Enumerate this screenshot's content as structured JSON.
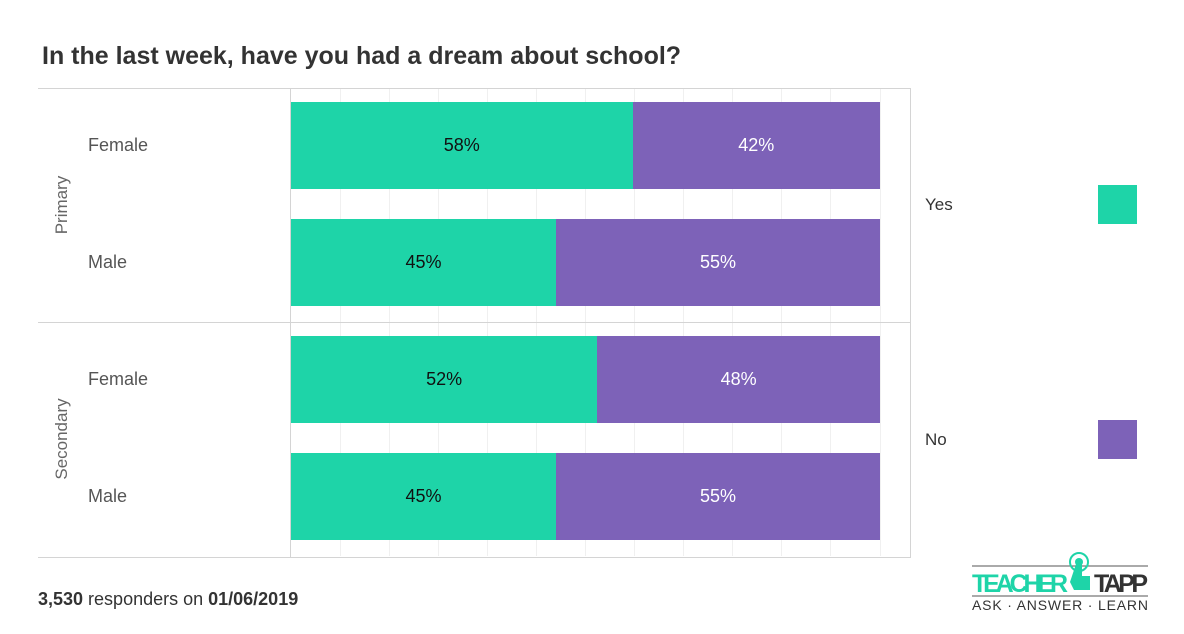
{
  "chart_data": {
    "type": "bar",
    "stacked": true,
    "orientation": "horizontal",
    "title": "In the last week, have you had a dream about school?",
    "groups": [
      {
        "name": "Primary",
        "rows": [
          {
            "label": "Female",
            "values": [
              58,
              42
            ]
          },
          {
            "label": "Male",
            "values": [
              45,
              55
            ]
          }
        ]
      },
      {
        "name": "Secondary",
        "rows": [
          {
            "label": "Female",
            "values": [
              52,
              48
            ]
          },
          {
            "label": "Male",
            "values": [
              45,
              55
            ]
          }
        ]
      }
    ],
    "series": [
      {
        "name": "Yes",
        "color": "#1ed4a8"
      },
      {
        "name": "No",
        "color": "#7d62b8"
      }
    ],
    "xlim": [
      0,
      100
    ],
    "legend": "right"
  },
  "footer": {
    "count": "3,530",
    "middle": " responders on ",
    "date": "01/06/2019"
  },
  "logo": {
    "text1": "TEACHER",
    "text2": "TAPP",
    "tagline": "ASK · ANSWER · LEARN"
  }
}
